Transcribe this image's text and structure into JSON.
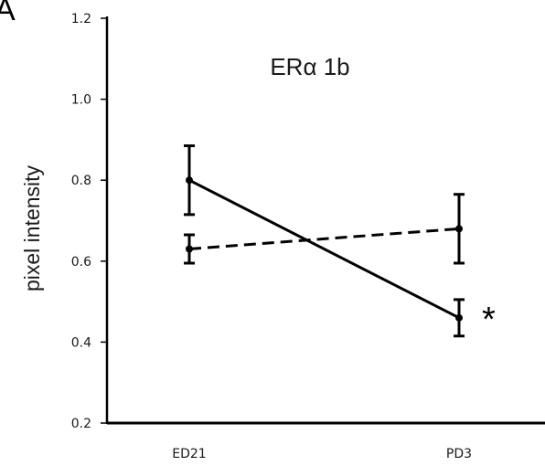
{
  "panel_label": "A",
  "chart_data": {
    "type": "line",
    "title": "ERα 1b",
    "xlabel": "",
    "ylabel": "pixel intensity",
    "categories": [
      "ED21",
      "PD3"
    ],
    "ylim": [
      0.2,
      1.2
    ],
    "yticks": [
      "0.2",
      "0.4",
      "0.6",
      "0.8",
      "1.0",
      "1.2"
    ],
    "grid": false,
    "series": [
      {
        "style": "solid",
        "values": [
          0.8,
          0.46
        ],
        "errors": [
          0.085,
          0.045
        ]
      },
      {
        "style": "dashed",
        "values": [
          0.63,
          0.68
        ],
        "errors": [
          0.035,
          0.085
        ]
      }
    ],
    "annotations": [
      {
        "text": "*",
        "category": "PD3",
        "series": 0
      }
    ]
  }
}
